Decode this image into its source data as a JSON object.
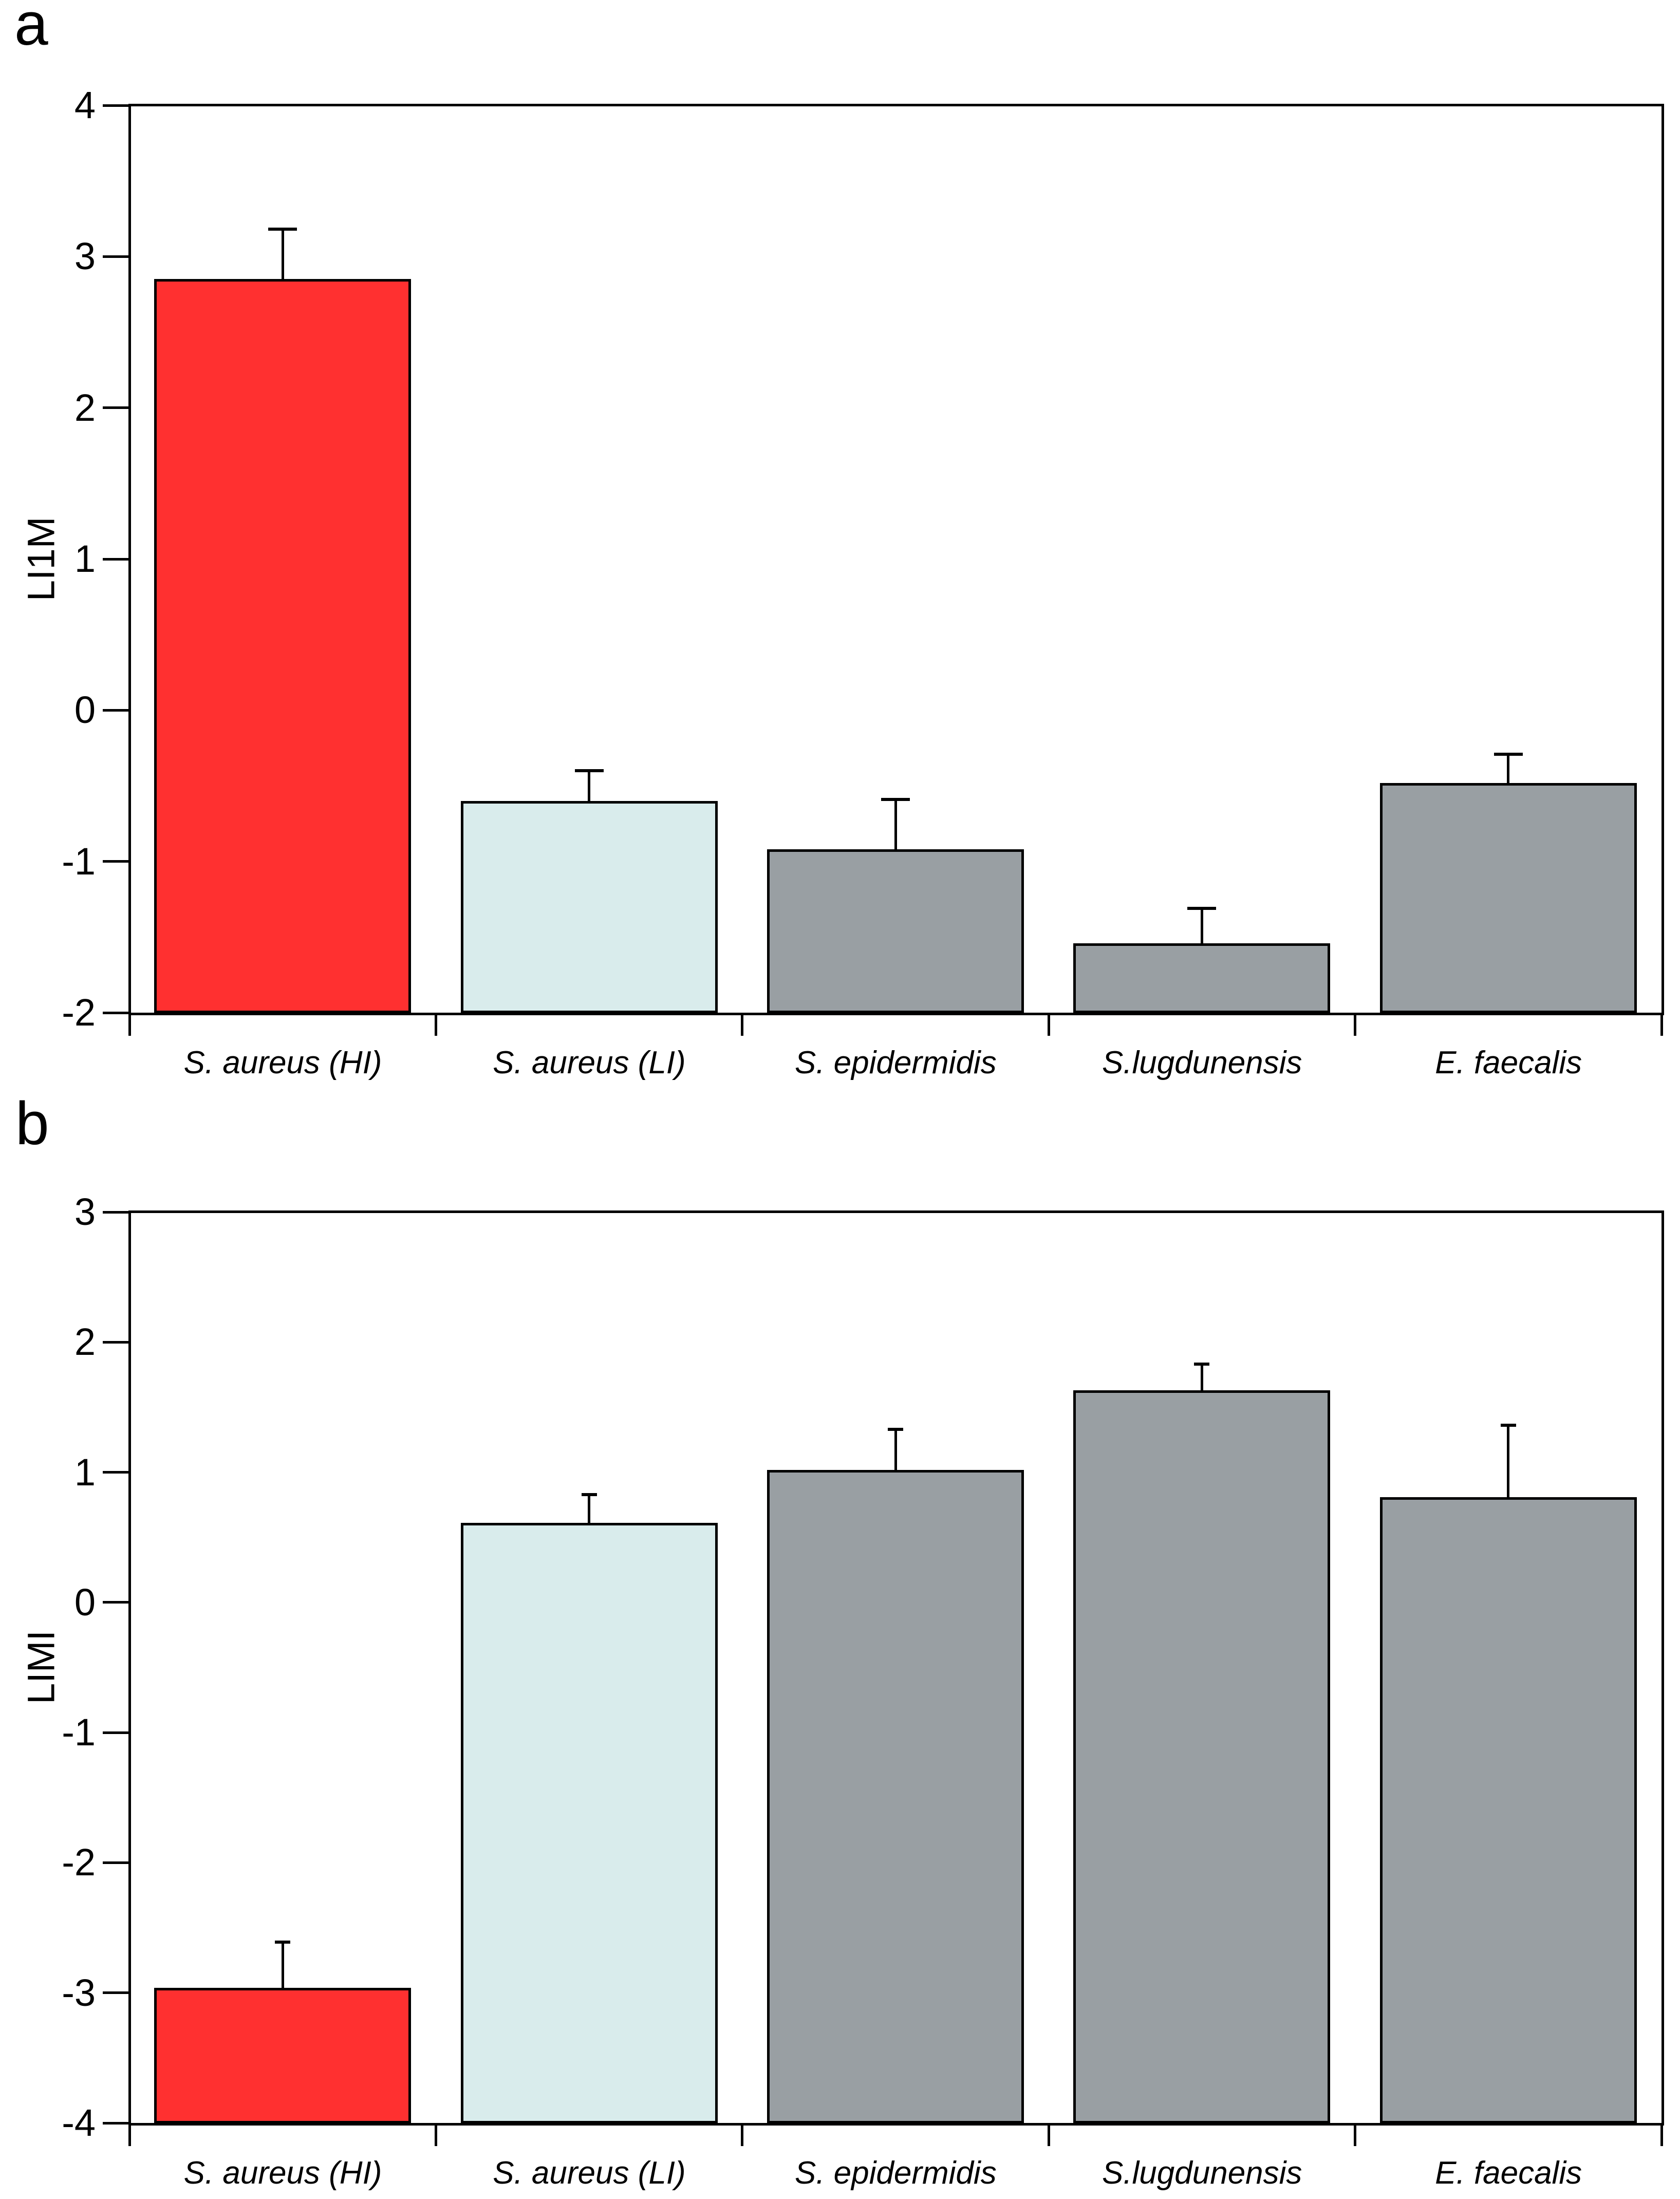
{
  "page": {
    "background": "#FFFFFF"
  },
  "colors": {
    "red": "#FF3030",
    "light_blue": "#D9ECEC",
    "gray": "#999FA3",
    "axis": "#000000"
  },
  "chart_data": [
    {
      "type": "bar",
      "panel_letter": "a",
      "title": "",
      "xlabel": "",
      "ylabel": "LI1M",
      "ylim": [
        -2,
        4
      ],
      "ytick_step": 1,
      "grid": false,
      "legend": false,
      "categories": [
        "S. aureus (HI)",
        "S. aureus (LI)",
        "S. epidermidis",
        "S.lugdunensis",
        "E. faecalis"
      ],
      "series": [
        {
          "name": "LI1M",
          "values": [
            2.85,
            -0.6,
            -0.92,
            -1.54,
            -0.48
          ],
          "error_tops": [
            3.18,
            -0.4,
            -0.59,
            -1.31,
            -0.29
          ]
        }
      ],
      "bar_color_keys": [
        "red",
        "light_blue",
        "gray",
        "gray",
        "gray"
      ]
    },
    {
      "type": "bar",
      "panel_letter": "b",
      "title": "",
      "xlabel": "",
      "ylabel": "LIMI",
      "ylim": [
        -4,
        3
      ],
      "ytick_step": 1,
      "grid": false,
      "legend": false,
      "categories": [
        "S. aureus (HI)",
        "S. aureus (LI)",
        "S. epidermidis",
        "S.lugdunensis",
        "E. faecalis"
      ],
      "series": [
        {
          "name": "LIMI",
          "values": [
            -2.96,
            0.61,
            1.02,
            1.63,
            0.81
          ],
          "error_tops": [
            -2.61,
            0.83,
            1.33,
            1.83,
            1.36
          ]
        }
      ],
      "bar_color_keys": [
        "red",
        "light_blue",
        "gray",
        "gray",
        "gray"
      ]
    }
  ]
}
